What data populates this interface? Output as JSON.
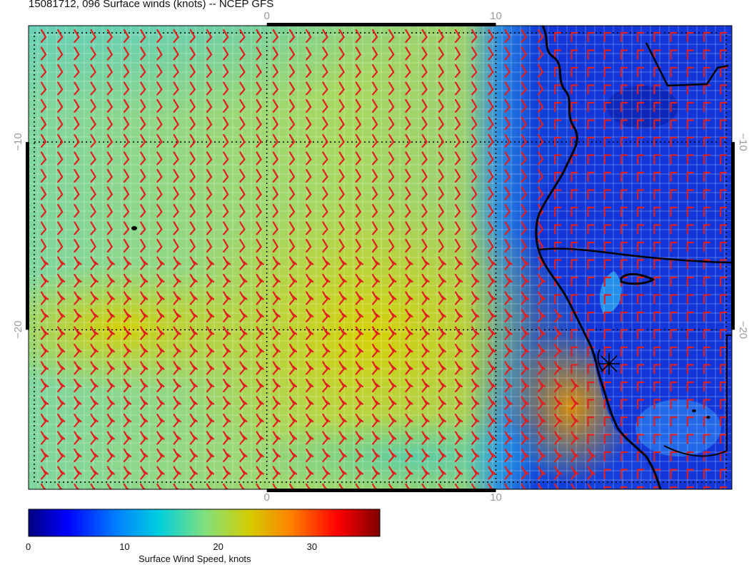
{
  "title": "15081712, 096 Surface winds (knots) -- NCEP GFS",
  "map": {
    "lon_ticks": [
      {
        "value": 0,
        "label": "0"
      },
      {
        "value": 10,
        "label": "10"
      }
    ],
    "lat_ticks": [
      {
        "value": -10,
        "label": "−10"
      },
      {
        "value": -20,
        "label": "−20"
      }
    ],
    "lon_range": [
      -10.4,
      20.3
    ],
    "lat_range": [
      -28.5,
      -3.8
    ],
    "wind_barb_color": "#e02020",
    "coastline_color": "#000000",
    "marker": "asterisk-marker"
  },
  "colorbar": {
    "title": "Surface Wind Speed, knots",
    "ticks": [
      "0",
      "10",
      "20",
      "30"
    ],
    "range": [
      0,
      37.5
    ],
    "colormap": "jet"
  },
  "colors": {
    "jet_stops": [
      "#00007f",
      "#0000ff",
      "#007fff",
      "#00cfdf",
      "#7fe07f",
      "#d4cc00",
      "#ff7f00",
      "#ff0000",
      "#7f0000"
    ]
  }
}
